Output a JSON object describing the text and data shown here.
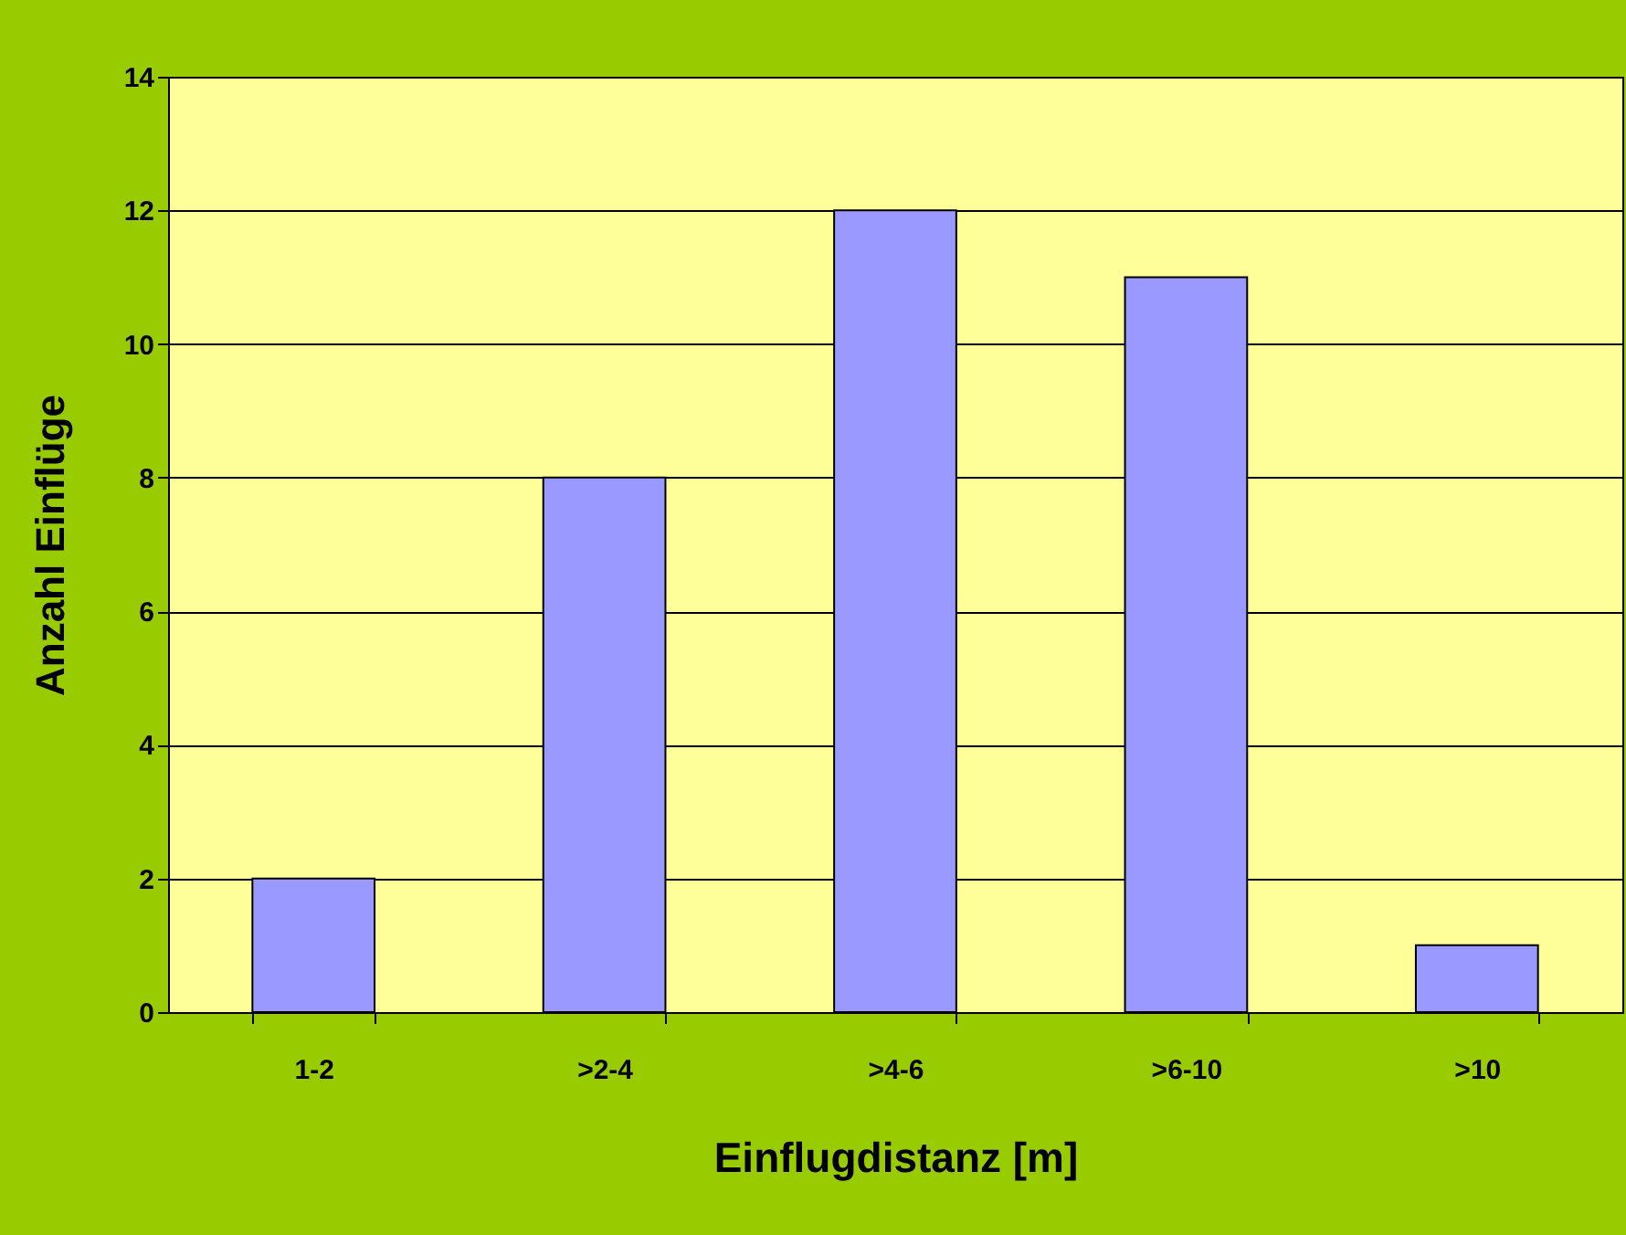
{
  "chart_data": {
    "type": "bar",
    "xlabel": "Einflugdistanz [m]",
    "ylabel": "Anzahl Einflüge",
    "categories": [
      "1-2",
      ">2-4",
      ">4-6",
      ">6-10",
      ">10"
    ],
    "values": [
      2,
      8,
      12,
      11,
      1
    ],
    "color": "#9999ff",
    "ylim": [
      0,
      14
    ],
    "yticks": [
      0,
      2,
      4,
      6,
      8,
      10,
      12,
      14
    ],
    "grid": "y"
  }
}
